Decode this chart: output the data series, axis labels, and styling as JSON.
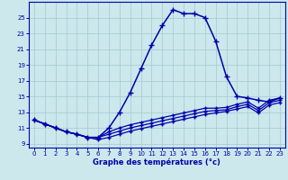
{
  "xlabel": "Graphe des températures (°c)",
  "bg_color": "#cce8ec",
  "grid_color": "#aacdd4",
  "line_color": "#0000aa",
  "x": [
    0,
    1,
    2,
    3,
    4,
    5,
    6,
    7,
    8,
    9,
    10,
    11,
    12,
    13,
    14,
    15,
    16,
    17,
    18,
    19,
    20,
    21,
    22,
    23
  ],
  "y_peak": [
    12.0,
    11.5,
    11.0,
    10.5,
    10.2,
    9.8,
    9.8,
    11.0,
    13.0,
    15.5,
    18.5,
    21.5,
    24.0,
    26.0,
    25.5,
    25.5,
    25.0,
    22.0,
    17.5,
    15.0,
    14.8,
    14.5,
    14.3,
    14.8
  ],
  "y_line1": [
    12.0,
    11.5,
    11.0,
    10.5,
    10.2,
    9.8,
    9.8,
    10.5,
    11.0,
    11.4,
    11.7,
    12.0,
    12.3,
    12.6,
    12.9,
    13.2,
    13.5,
    13.5,
    13.6,
    14.0,
    14.3,
    13.5,
    14.5,
    14.8
  ],
  "y_line2": [
    12.0,
    11.5,
    11.0,
    10.5,
    10.2,
    9.8,
    9.8,
    10.2,
    10.6,
    11.0,
    11.3,
    11.6,
    11.9,
    12.2,
    12.5,
    12.8,
    13.1,
    13.2,
    13.3,
    13.7,
    14.0,
    13.2,
    14.2,
    14.5
  ],
  "y_line3": [
    12.0,
    11.5,
    11.0,
    10.5,
    10.2,
    9.8,
    9.5,
    9.8,
    10.2,
    10.6,
    10.9,
    11.2,
    11.5,
    11.8,
    12.1,
    12.4,
    12.7,
    12.9,
    13.1,
    13.4,
    13.7,
    12.9,
    13.9,
    14.2
  ],
  "ylim": [
    8.5,
    27.0
  ],
  "yticks": [
    9,
    11,
    13,
    15,
    17,
    19,
    21,
    23,
    25
  ],
  "xlim": [
    -0.5,
    23.5
  ],
  "xticks": [
    0,
    1,
    2,
    3,
    4,
    5,
    6,
    7,
    8,
    9,
    10,
    11,
    12,
    13,
    14,
    15,
    16,
    17,
    18,
    19,
    20,
    21,
    22,
    23
  ]
}
